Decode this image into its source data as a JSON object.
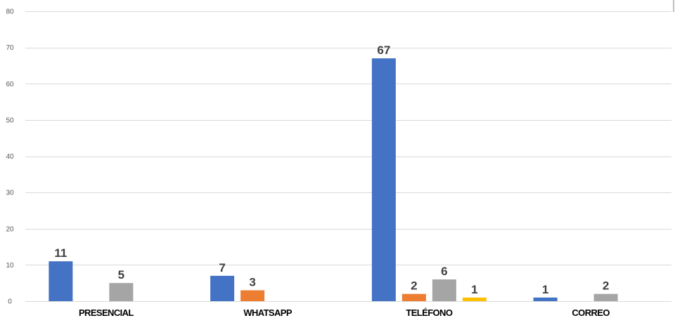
{
  "chart_data": {
    "type": "bar",
    "categories": [
      "PRESENCIAL",
      "WHATSAPP",
      "TELÉFONO",
      "CORREO"
    ],
    "series": [
      {
        "color": "#4472c4",
        "values": [
          11,
          7,
          67,
          1
        ]
      },
      {
        "color": "#ed7d31",
        "values": [
          null,
          3,
          2,
          null
        ]
      },
      {
        "color": "#a5a5a5",
        "values": [
          5,
          null,
          6,
          2
        ]
      },
      {
        "color": "#ffc000",
        "values": [
          null,
          null,
          1,
          null
        ]
      }
    ],
    "ylim": [
      0,
      80
    ],
    "yticks": [
      0,
      10,
      20,
      30,
      40,
      50,
      60,
      70,
      80
    ],
    "grid": true,
    "legend": "none",
    "data_labels": true
  }
}
